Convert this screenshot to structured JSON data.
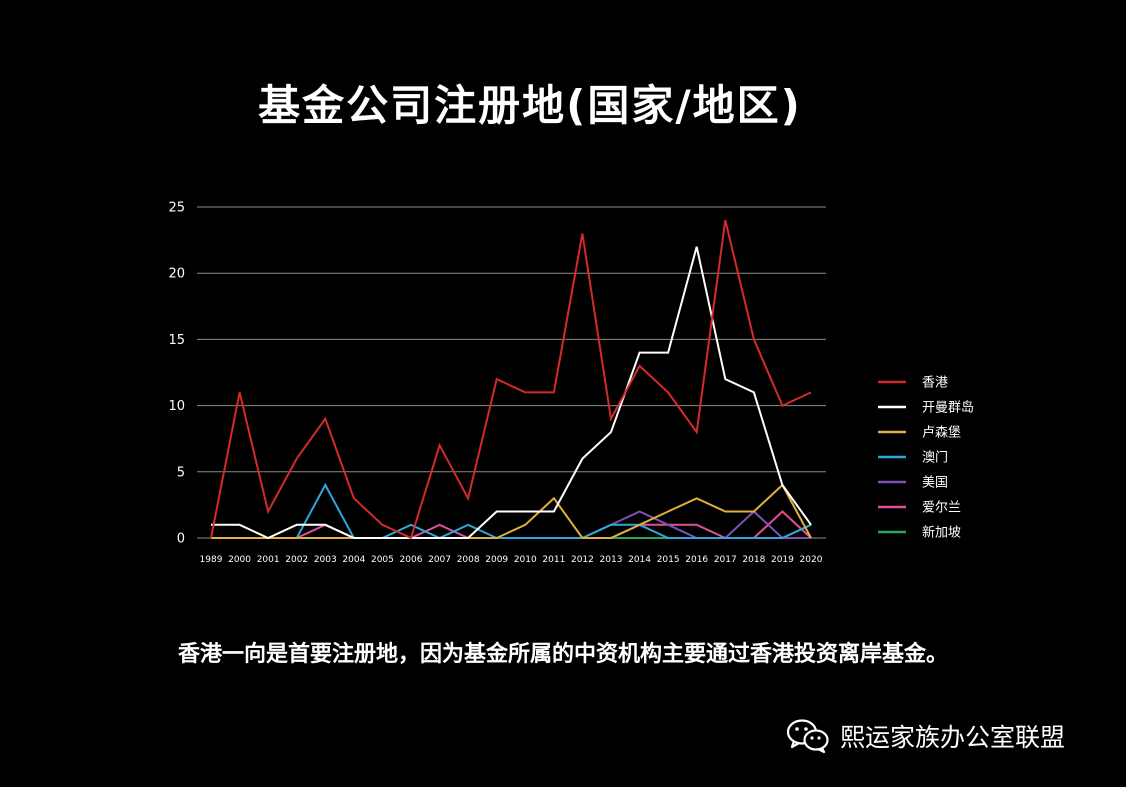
{
  "title": "基金公司注册地(国家/地区)",
  "caption": "香港一向是首要注册地，因为基金所属的中资机构主要通过香港投资离岸基金。",
  "watermark": {
    "text": "熙运家族办公室联盟",
    "icon": "wechat-icon"
  },
  "chart_data": {
    "type": "line",
    "x": [
      "1989",
      "2000",
      "2001",
      "2002",
      "2003",
      "2004",
      "2005",
      "2006",
      "2007",
      "2008",
      "2009",
      "2010",
      "2011",
      "2012",
      "2013",
      "2014",
      "2015",
      "2016",
      "2017",
      "2018",
      "2019",
      "2020"
    ],
    "ylim": [
      0,
      25
    ],
    "yticks": [
      0,
      5,
      10,
      15,
      20,
      25
    ],
    "grid": true,
    "legend_position": "right",
    "series": [
      {
        "name": "香港",
        "color": "#d42a2a",
        "values": [
          0,
          11,
          2,
          6,
          9,
          3,
          1,
          0,
          7,
          3,
          12,
          11,
          11,
          23,
          9,
          13,
          11,
          8,
          24,
          15,
          10,
          11
        ]
      },
      {
        "name": "开曼群岛",
        "color": "#ffffff",
        "values": [
          1,
          1,
          0,
          1,
          1,
          0,
          0,
          0,
          0,
          0,
          2,
          2,
          2,
          6,
          8,
          14,
          14,
          22,
          12,
          11,
          4,
          1
        ]
      },
      {
        "name": "卢森堡",
        "color": "#e0b03a",
        "values": [
          0,
          0,
          0,
          0,
          0,
          0,
          0,
          0,
          0,
          0,
          0,
          1,
          3,
          0,
          0,
          1,
          2,
          3,
          2,
          2,
          4,
          0
        ]
      },
      {
        "name": "澳门",
        "color": "#2fa7d8",
        "values": [
          0,
          0,
          0,
          0,
          4,
          0,
          0,
          1,
          0,
          1,
          0,
          0,
          0,
          0,
          1,
          1,
          0,
          0,
          0,
          0,
          0,
          1
        ]
      },
      {
        "name": "美国",
        "color": "#7b52b8",
        "values": [
          0,
          0,
          0,
          0,
          0,
          0,
          0,
          0,
          0,
          0,
          0,
          0,
          0,
          0,
          1,
          2,
          1,
          0,
          0,
          2,
          0,
          0
        ]
      },
      {
        "name": "爱尔兰",
        "color": "#e0509a",
        "values": [
          0,
          0,
          0,
          0,
          1,
          0,
          0,
          0,
          1,
          0,
          0,
          0,
          0,
          0,
          0,
          1,
          1,
          1,
          0,
          0,
          2,
          0
        ]
      },
      {
        "name": "新加坡",
        "color": "#27a85a",
        "values": [
          0,
          0,
          0,
          0,
          0,
          0,
          0,
          0,
          0,
          0,
          0,
          0,
          0,
          0,
          0,
          0,
          0,
          0,
          0,
          0,
          0,
          1
        ]
      }
    ]
  }
}
